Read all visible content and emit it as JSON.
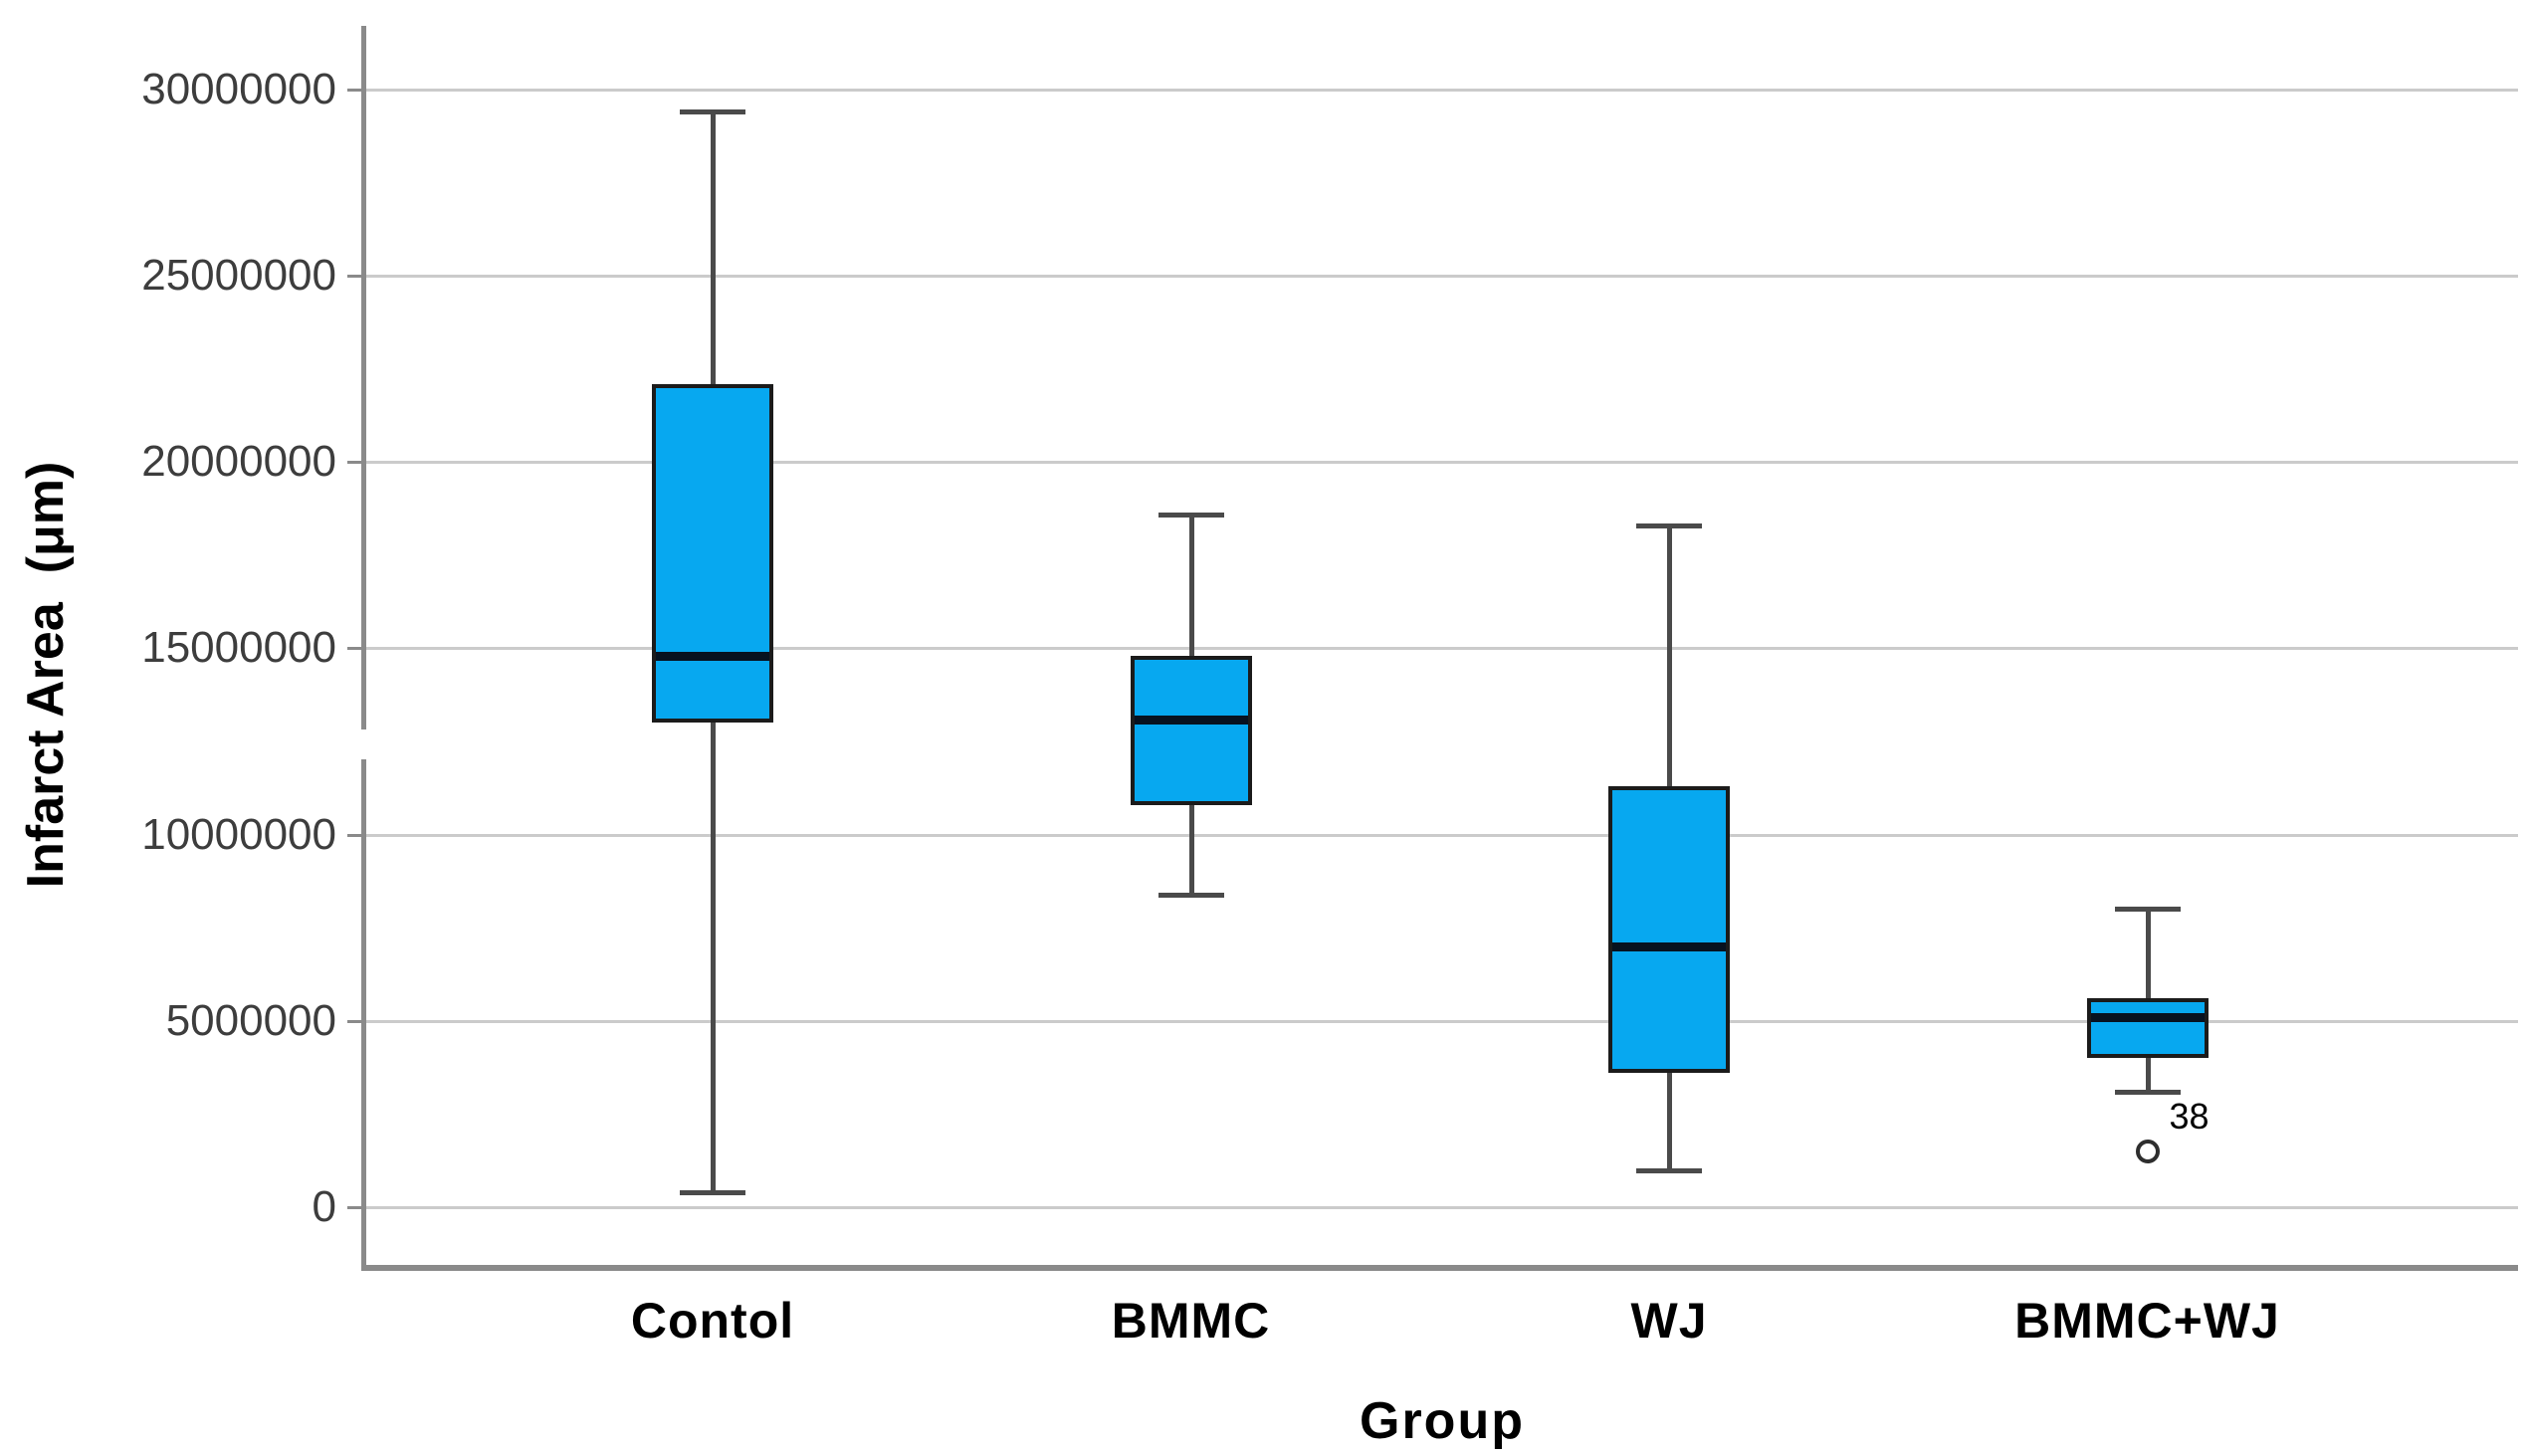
{
  "chart_data": {
    "type": "boxplot",
    "title": "",
    "xlabel": "Group",
    "ylabel": "Infarct Area  (μm)",
    "grid": true,
    "ylim": [
      0,
      31700000
    ],
    "yticks": [
      "30000000",
      "25000000",
      "20000000",
      "15000000",
      "10000000",
      "5000000",
      "0"
    ],
    "categories": [
      "Contol",
      "BMMC",
      "WJ",
      "BMMC+WJ"
    ],
    "series": [
      {
        "group": "Contol",
        "whisker_low": 400000,
        "q1": 13000000,
        "median": 14800000,
        "q3": 22100000,
        "whisker_high": 29400000,
        "outliers": []
      },
      {
        "group": "BMMC",
        "whisker_low": 8400000,
        "q1": 10800000,
        "median": 13100000,
        "q3": 14800000,
        "whisker_high": 18600000,
        "outliers": []
      },
      {
        "group": "WJ",
        "whisker_low": 1000000,
        "q1": 3600000,
        "median": 7000000,
        "q3": 11300000,
        "whisker_high": 18300000,
        "outliers": []
      },
      {
        "group": "BMMC+WJ",
        "whisker_low": 3100000,
        "q1": 4000000,
        "median": 5100000,
        "q3": 5600000,
        "whisker_high": 8000000,
        "outliers": [
          {
            "value": 1500000,
            "label": "38"
          }
        ]
      }
    ]
  },
  "colors": {
    "box_fill": "#07a8f0",
    "box_border": "#1b1b1b",
    "median": "#071220",
    "whisker": "#4a4a4a",
    "gridline": "#cbcbcb",
    "axis": "#8a8a8a",
    "tick_text": "#3d3d3d",
    "label_text": "#000000"
  }
}
